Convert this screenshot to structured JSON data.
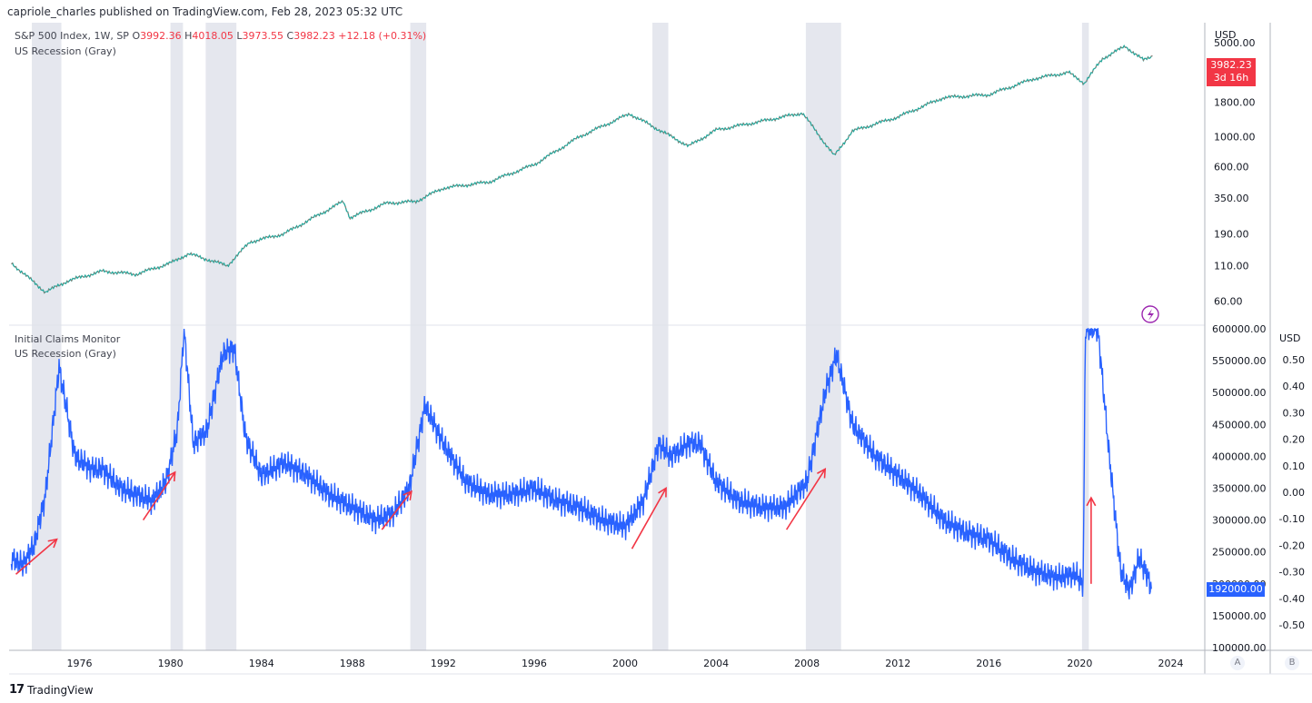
{
  "header": {
    "published": "capriole_charles published on TradingView.com, Feb 28, 2023 05:32 UTC"
  },
  "top_legend": {
    "series_name": "S&P 500 Index, 1W, SP",
    "o_label": "O",
    "o_value": "3992.36",
    "h_label": "H",
    "h_value": "4018.05",
    "l_label": "L",
    "l_value": "3973.55",
    "c_label": "C",
    "c_value": "3982.23",
    "change": "+12.18 (+0.31%)",
    "overlay": "US Recession (Gray)"
  },
  "bottom_legend": {
    "series_name": "Initial Claims Monitor",
    "overlay": "US Recession (Gray)"
  },
  "price_tag": {
    "value": "3982.23",
    "countdown": "3d 16h",
    "color": "#f23645"
  },
  "claims_tag": {
    "value": "192000.00",
    "color": "#2962ff"
  },
  "footer": {
    "brand": "TradingView",
    "mark": "17"
  },
  "axis_buttons": {
    "a": "A",
    "b": "B"
  },
  "colors": {
    "line_blue": "#2962ff",
    "up": "#26a69a",
    "down": "#ef5350",
    "recession": "#e0e3eb",
    "arrow": "#f23645"
  },
  "chart_data": [
    {
      "type": "line",
      "title": "S&P 500 Index, 1W, SP",
      "ylabel": "USD",
      "yscale": "log",
      "y_ticks": [
        "5000.00",
        "1800.00",
        "1000.00",
        "600.00",
        "350.00",
        "190.00",
        "110.00",
        "60.00"
      ],
      "y_tick_values": [
        5000,
        1800,
        1000,
        600,
        350,
        190,
        110,
        60
      ],
      "x": [
        1973.0,
        1974.5,
        1975.5,
        1977,
        1978.5,
        1980,
        1980.8,
        1982.5,
        1983.5,
        1985,
        1987.6,
        1987.9,
        1989.5,
        1990.8,
        1992,
        1994,
        1996,
        1998,
        2000.2,
        2002.8,
        2004,
        2006,
        2007.8,
        2009.2,
        2010,
        2012,
        2014,
        2016,
        2018,
        2019.5,
        2020.2,
        2021,
        2022.0,
        2022.8,
        2023.2
      ],
      "values": [
        115,
        70,
        85,
        100,
        95,
        115,
        135,
        110,
        165,
        190,
        330,
        250,
        320,
        330,
        415,
        460,
        620,
        1000,
        1480,
        850,
        1120,
        1300,
        1500,
        720,
        1100,
        1400,
        1950,
        2050,
        2700,
        3000,
        2500,
        3800,
        4700,
        3700,
        3982.23
      ],
      "recession_periods": [
        [
          1973.9,
          1975.2
        ],
        [
          1980.0,
          1980.55
        ],
        [
          1981.55,
          1982.9
        ],
        [
          1990.55,
          1991.25
        ],
        [
          2001.2,
          2001.9
        ],
        [
          2007.95,
          2009.5
        ],
        [
          2020.1,
          2020.4
        ]
      ]
    },
    {
      "type": "line",
      "title": "Initial Claims Monitor",
      "ylabel": "USD",
      "y_ticks": [
        "600000.00",
        "550000.00",
        "500000.00",
        "450000.00",
        "400000.00",
        "350000.00",
        "300000.00",
        "250000.00",
        "200000.00",
        "150000.00",
        "100000.00"
      ],
      "ylim": [
        100000,
        600000
      ],
      "right_axis_ticks": [
        "0.50",
        "0.40",
        "0.30",
        "0.20",
        "0.10",
        "0.00",
        "-0.10",
        "-0.20",
        "-0.30",
        "-0.40",
        "-0.50"
      ],
      "x_ticks": [
        "1976",
        "1980",
        "1984",
        "1988",
        "1992",
        "1996",
        "2000",
        "2004",
        "2008",
        "2012",
        "2016",
        "2020",
        "2024"
      ],
      "x_tick_values": [
        1976,
        1980,
        1984,
        1988,
        1992,
        1996,
        2000,
        2004,
        2008,
        2012,
        2016,
        2020,
        2024
      ],
      "xlim": [
        1972.9,
        2025.5
      ],
      "x": [
        1973.0,
        1973.5,
        1974.0,
        1974.5,
        1975.1,
        1975.8,
        1976.5,
        1977.0,
        1977.8,
        1978.5,
        1979.2,
        1979.8,
        1980.3,
        1980.6,
        1981.0,
        1981.6,
        1982.3,
        1982.8,
        1983.3,
        1984.0,
        1985.0,
        1986.0,
        1987.0,
        1988.0,
        1989.0,
        1989.8,
        1990.5,
        1991.2,
        1992.0,
        1993.0,
        1994.0,
        1995.0,
        1996.0,
        1997.0,
        1998.0,
        1999.0,
        2000.0,
        2000.8,
        2001.5,
        2002.0,
        2002.8,
        2003.3,
        2004.0,
        2005.0,
        2006.0,
        2007.0,
        2008.0,
        2008.8,
        2009.3,
        2010.0,
        2011.0,
        2012.0,
        2013.0,
        2014.0,
        2015.0,
        2016.0,
        2017.0,
        2018.0,
        2019.0,
        2019.8,
        2020.15,
        2020.25,
        2020.8,
        2021.3,
        2021.8,
        2022.2,
        2022.6,
        2022.9,
        2023.15
      ],
      "values": [
        240000,
        230000,
        260000,
        340000,
        540000,
        400000,
        380000,
        380000,
        350000,
        340000,
        330000,
        360000,
        440000,
        600000,
        420000,
        440000,
        560000,
        570000,
        430000,
        370000,
        390000,
        370000,
        340000,
        320000,
        300000,
        310000,
        350000,
        480000,
        420000,
        360000,
        340000,
        340000,
        350000,
        330000,
        320000,
        300000,
        290000,
        330000,
        420000,
        400000,
        420000,
        420000,
        360000,
        330000,
        320000,
        320000,
        360000,
        500000,
        560000,
        450000,
        400000,
        370000,
        340000,
        300000,
        280000,
        270000,
        240000,
        220000,
        210000,
        215000,
        200000,
        600000,
        600000,
        400000,
        220000,
        190000,
        240000,
        220000,
        192000
      ],
      "arrows": [
        [
          1973.2,
          215000,
          1975.0,
          270000
        ],
        [
          1978.8,
          300000,
          1980.2,
          375000
        ],
        [
          1989.3,
          285000,
          1990.6,
          345000
        ],
        [
          2000.3,
          255000,
          2001.8,
          350000
        ],
        [
          2007.1,
          285000,
          2008.8,
          380000
        ],
        [
          2020.5,
          200000,
          2020.5,
          335000
        ]
      ],
      "recession_periods": [
        [
          1973.9,
          1975.2
        ],
        [
          1980.0,
          1980.55
        ],
        [
          1981.55,
          1982.9
        ],
        [
          1990.55,
          1991.25
        ],
        [
          2001.2,
          2001.9
        ],
        [
          2007.95,
          2009.5
        ],
        [
          2020.1,
          2020.4
        ]
      ]
    }
  ]
}
